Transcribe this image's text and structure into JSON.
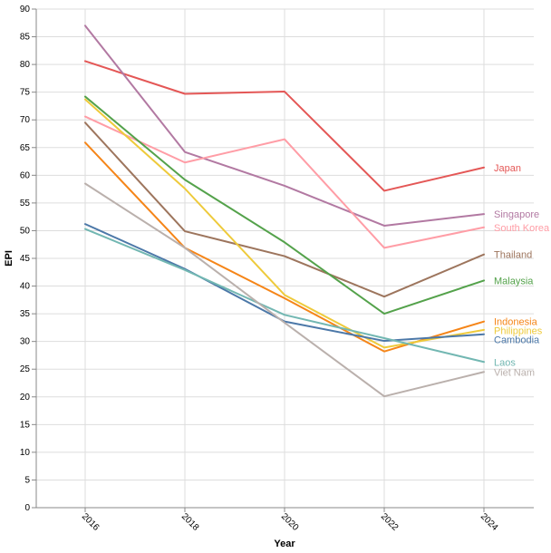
{
  "chart_data": {
    "type": "line",
    "title": "",
    "xlabel": "Year",
    "ylabel": "EPI",
    "x": [
      "2016",
      "2018",
      "2020",
      "2022",
      "2024"
    ],
    "ylim": [
      0,
      90
    ],
    "y_ticks": [
      0,
      5,
      10,
      15,
      20,
      25,
      30,
      35,
      40,
      45,
      50,
      55,
      60,
      65,
      70,
      75,
      80,
      85,
      90
    ],
    "grid": true,
    "legend": "labels at line ends (right)",
    "series": [
      {
        "name": "Japan",
        "color": "#e45756",
        "values": [
          80.6,
          74.7,
          75.1,
          57.2,
          61.4
        ]
      },
      {
        "name": "Singapore",
        "color": "#b279a2",
        "values": [
          87.0,
          64.2,
          58.1,
          50.9,
          53.0
        ]
      },
      {
        "name": "South Korea",
        "color": "#ff9da6",
        "values": [
          70.6,
          62.3,
          66.5,
          46.9,
          50.6
        ]
      },
      {
        "name": "Thailand",
        "color": "#9d755d",
        "values": [
          69.5,
          49.9,
          45.4,
          38.1,
          45.7
        ]
      },
      {
        "name": "Malaysia",
        "color": "#54a24b",
        "values": [
          74.2,
          59.2,
          47.9,
          35.0,
          41.0
        ]
      },
      {
        "name": "Indonesia",
        "color": "#f58518",
        "values": [
          65.9,
          46.9,
          37.8,
          28.2,
          33.6
        ]
      },
      {
        "name": "Philippines",
        "color": "#eeca3b",
        "values": [
          73.7,
          57.6,
          38.4,
          28.9,
          32.1
        ]
      },
      {
        "name": "Cambodia",
        "color": "#4c78a8",
        "values": [
          51.2,
          43.1,
          33.6,
          30.1,
          31.3
        ]
      },
      {
        "name": "Laos",
        "color": "#72b7b2",
        "values": [
          50.3,
          42.9,
          34.8,
          30.6,
          26.3
        ]
      },
      {
        "name": "Viet Nam",
        "color": "#bab0ac",
        "values": [
          58.5,
          46.9,
          33.4,
          20.1,
          24.5
        ]
      }
    ]
  }
}
